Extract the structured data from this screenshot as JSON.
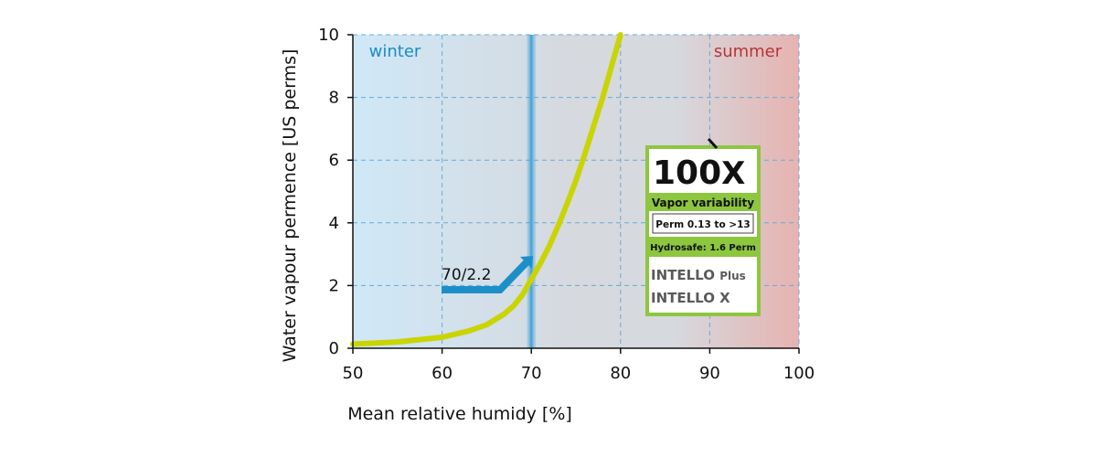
{
  "chart_data": {
    "type": "line",
    "xlabel": "Mean relative humidy [%]",
    "ylabel": "Water vapour permence [US perms]",
    "xlim": [
      50,
      100
    ],
    "ylim": [
      0,
      10
    ],
    "x_ticks": [
      50,
      60,
      70,
      80,
      90,
      100
    ],
    "y_ticks": [
      0,
      2,
      4,
      6,
      8,
      10
    ],
    "x_tick_labels": [
      "50",
      "60",
      "70",
      "80",
      "90",
      "100"
    ],
    "y_tick_labels": [
      "0",
      "2",
      "4",
      "6",
      "8",
      "10"
    ],
    "grid": true,
    "series": [
      {
        "color": "#c9d400",
        "x": [
          50,
          55,
          60,
          63,
          65,
          67,
          68,
          69,
          70,
          71,
          72,
          73,
          74,
          75,
          76,
          77,
          78,
          79,
          80
        ],
        "y": [
          0.13,
          0.2,
          0.35,
          0.55,
          0.75,
          1.1,
          1.35,
          1.7,
          2.2,
          2.7,
          3.25,
          3.9,
          4.6,
          5.35,
          6.2,
          7.1,
          8.0,
          9.0,
          10.0
        ]
      }
    ],
    "annotations": {
      "winter_label": "winter",
      "summer_label": "summer",
      "point_label": "70/2.2",
      "marker_x": 70,
      "point": {
        "x": 70,
        "y": 2.2
      }
    },
    "colors": {
      "winter": "#cfe8f7",
      "middle": "#d6d9de",
      "summer": "#e6b3b0",
      "marker": "#4aa6d8",
      "arrow": "#1d8fc8",
      "winter_text": "#1a8cc4",
      "summer_text": "#b5343a",
      "badge_green": "#8dc63f",
      "grid": "#6aa9d6"
    }
  },
  "badge": {
    "title": "100",
    "title_x": "X",
    "line1": "Vapor variability",
    "line2": "Perm 0.13 to >13",
    "line3": "Hydrosafe: 1.6 Perm",
    "product1_main": "INTELLO",
    "product1_suffix": "Plus",
    "product2": "INTELLO X"
  }
}
